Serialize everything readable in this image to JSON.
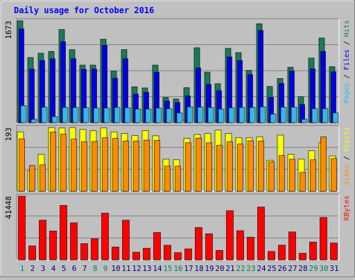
{
  "chart_data": {
    "type": "bar",
    "title": "Daily usage for October 2016",
    "categories": [
      "1",
      "2",
      "3",
      "4",
      "5",
      "6",
      "7",
      "8",
      "9",
      "10",
      "11",
      "12",
      "13",
      "14",
      "15",
      "16",
      "17",
      "18",
      "19",
      "20",
      "21",
      "22",
      "23",
      "24",
      "25",
      "26",
      "27",
      "28",
      "29",
      "30",
      "31"
    ],
    "weekend_days": [
      "1",
      "8",
      "9",
      "15",
      "16",
      "22",
      "23",
      "29",
      "30"
    ],
    "panels": [
      {
        "name": "hits-files-pages",
        "max_label": "1673",
        "ylim": [
          0,
          1673
        ],
        "series": [
          {
            "name": "Hits",
            "color": "#1a7a5a",
            "values": [
              1673,
              1070,
              1140,
              1170,
              1530,
              1200,
              945,
              945,
              1370,
              845,
              1200,
              590,
              570,
              945,
              415,
              390,
              575,
              1230,
              830,
              640,
              1220,
              1150,
              860,
              1625,
              595,
              725,
              910,
              425,
              1060,
              1390,
              920
            ]
          },
          {
            "name": "Files",
            "color": "#0000e8",
            "values": [
              1540,
              880,
              1020,
              1050,
              1330,
              1050,
              875,
              880,
              1270,
              730,
              1050,
              470,
              500,
              830,
              355,
              330,
              440,
              900,
              630,
              525,
              1080,
              1020,
              790,
              1515,
              415,
              645,
              845,
              300,
              885,
              1170,
              835
            ]
          },
          {
            "name": "Pages",
            "color": "#35b8e8",
            "values": [
              280,
              55,
              255,
              100,
              250,
              250,
              245,
              240,
              240,
              250,
              245,
              225,
              225,
              240,
              230,
              160,
              260,
              255,
              250,
              225,
              245,
              250,
              250,
              260,
              140,
              255,
              255,
              55,
              230,
              230,
              160
            ]
          }
        ]
      },
      {
        "name": "visits-sites",
        "max_label": "193",
        "ylim": [
          0,
          193
        ],
        "series": [
          {
            "name": "Visits",
            "color": "#ffff00",
            "values": [
              180,
              62,
              112,
              193,
              192,
              193,
              187,
              183,
              192,
              180,
              175,
              169,
              184,
              168,
              97,
              96,
              160,
              172,
              175,
              185,
              175,
              163,
              162,
              165,
              94,
              170,
              112,
              98,
              123,
              147,
              107
            ]
          },
          {
            "name": "Sites",
            "color": "#ff8c00",
            "values": [
              159,
              78,
              80,
              179,
              173,
              158,
              150,
              151,
              162,
              160,
              152,
              152,
              155,
              154,
              76,
              76,
              147,
              161,
              147,
              139,
              150,
              143,
              153,
              152,
              89,
              108,
              97,
              57,
              95,
              165,
              99
            ]
          }
        ]
      },
      {
        "name": "kbytes",
        "max_label": "41448",
        "ylim": [
          0,
          41448
        ],
        "series": [
          {
            "name": "KBytes",
            "color": "#ff0000",
            "values": [
              41448,
              9100,
              25800,
              18800,
              35400,
              24100,
              10600,
              13800,
              30400,
              8400,
              25800,
              5000,
              7600,
              17800,
              9500,
              4700,
              7200,
              21100,
              17000,
              6200,
              32000,
              19000,
              14800,
              34400,
              5500,
              9600,
              18200,
              4300,
              11600,
              27600,
              11000
            ]
          }
        ]
      }
    ],
    "right_legends": [
      [
        {
          "text": "Pages",
          "color": "#35b8e8"
        },
        {
          "text": " / ",
          "color": "#000000"
        },
        {
          "text": "Files",
          "color": "#0000e8"
        },
        {
          "text": " / ",
          "color": "#000000"
        },
        {
          "text": "Hits",
          "color": "#1a7a5a"
        }
      ],
      [
        {
          "text": "Sites",
          "color": "#ff8c00"
        },
        {
          "text": " / ",
          "color": "#000000"
        },
        {
          "text": "Visits",
          "color": "#ffff00"
        }
      ],
      [
        {
          "text": "KBytes",
          "color": "#ff0000"
        }
      ]
    ],
    "colors": {
      "background": "#c0c0c0",
      "title": "#0000ff",
      "weekday_label": "#000080",
      "weekend_label": "#00805a",
      "grid": "#808080"
    }
  }
}
